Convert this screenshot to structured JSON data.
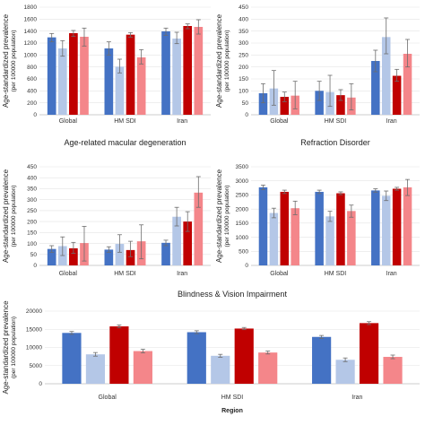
{
  "colors": [
    "#4472c4",
    "#b4c7e7",
    "#c00000",
    "#f4868a"
  ],
  "chart_data": [
    {
      "type": "bar",
      "title": "",
      "ylabel": "Age-standardized prevalence",
      "ylabel2": "(per 100000 population)",
      "xlabel": "",
      "categories": [
        "Global",
        "HM SDI",
        "Iran"
      ],
      "ylim": [
        0,
        1800
      ],
      "yticks": [
        0,
        200,
        400,
        600,
        800,
        1000,
        1200,
        1400,
        1600,
        1800
      ],
      "series": [
        {
          "values": [
            1295,
            1110,
            1395
          ],
          "errors": [
            [
              1220,
              1360
            ],
            [
              1000,
              1220
            ],
            [
              1330,
              1450
            ]
          ]
        },
        {
          "values": [
            1110,
            805,
            1275
          ],
          "errors": [
            [
              980,
              1240
            ],
            [
              700,
              930
            ],
            [
              1190,
              1380
            ]
          ]
        },
        {
          "values": [
            1365,
            1340,
            1485
          ],
          "errors": [
            [
              1310,
              1410
            ],
            [
              1300,
              1375
            ],
            [
              1440,
              1520
            ]
          ]
        },
        {
          "values": [
            1305,
            960,
            1470
          ],
          "errors": [
            [
              1150,
              1450
            ],
            [
              850,
              1090
            ],
            [
              1350,
              1590
            ]
          ]
        }
      ]
    },
    {
      "type": "bar",
      "title": "",
      "ylabel": "Age-standardized prevalence",
      "ylabel2": "(per 100000 population)",
      "xlabel": "",
      "categories": [
        "Global",
        "HM SDI",
        "Iran"
      ],
      "ylim": [
        0,
        450
      ],
      "yticks": [
        0,
        50,
        100,
        150,
        200,
        250,
        300,
        350,
        400,
        450
      ],
      "series": [
        {
          "values": [
            90,
            100,
            225
          ],
          "errors": [
            [
              50,
              130
            ],
            [
              60,
              140
            ],
            [
              180,
              270
            ]
          ]
        },
        {
          "values": [
            110,
            95,
            325
          ],
          "errors": [
            [
              40,
              185
            ],
            [
              35,
              165
            ],
            [
              255,
              405
            ]
          ]
        },
        {
          "values": [
            75,
            82,
            163
          ],
          "errors": [
            [
              55,
              95
            ],
            [
              60,
              105
            ],
            [
              140,
              190
            ]
          ]
        },
        {
          "values": [
            80,
            72,
            255
          ],
          "errors": [
            [
              25,
              140
            ],
            [
              20,
              130
            ],
            [
              200,
              315
            ]
          ]
        }
      ]
    },
    {
      "type": "bar",
      "title": "Age-related macular degeneration",
      "ylabel": "Age-standardized prevalence",
      "ylabel2": "(per 100000 population)",
      "xlabel": "",
      "categories": [
        "Global",
        "HM SDI",
        "Iran"
      ],
      "ylim": [
        0,
        450
      ],
      "yticks": [
        0,
        50,
        100,
        150,
        200,
        250,
        300,
        350,
        400,
        450
      ],
      "series": [
        {
          "values": [
            75,
            72,
            103
          ],
          "errors": [
            [
              60,
              90
            ],
            [
              60,
              85
            ],
            [
              90,
              115
            ]
          ]
        },
        {
          "values": [
            88,
            98,
            222
          ],
          "errors": [
            [
              45,
              130
            ],
            [
              60,
              140
            ],
            [
              180,
              265
            ]
          ]
        },
        {
          "values": [
            78,
            70,
            200
          ],
          "errors": [
            [
              55,
              105
            ],
            [
              40,
              110
            ],
            [
              155,
              245
            ]
          ]
        },
        {
          "values": [
            102,
            110,
            332
          ],
          "errors": [
            [
              20,
              178
            ],
            [
              30,
              185
            ],
            [
              265,
              405
            ]
          ]
        }
      ]
    },
    {
      "type": "bar",
      "title": "Refraction Disorder",
      "ylabel": "Age-standardized prevalence",
      "ylabel2": "(per 100000 population)",
      "xlabel": "",
      "categories": [
        "Global",
        "HM SDI",
        "Iran"
      ],
      "ylim": [
        0,
        3500
      ],
      "yticks": [
        0,
        500,
        1000,
        1500,
        2000,
        2500,
        3000,
        3500
      ],
      "series": [
        {
          "values": [
            2770,
            2610,
            2660
          ],
          "errors": [
            [
              2690,
              2850
            ],
            [
              2550,
              2670
            ],
            [
              2600,
              2720
            ]
          ]
        },
        {
          "values": [
            1860,
            1740,
            2470
          ],
          "errors": [
            [
              1690,
              2030
            ],
            [
              1560,
              1920
            ],
            [
              2300,
              2640
            ]
          ]
        },
        {
          "values": [
            2610,
            2560,
            2720
          ],
          "errors": [
            [
              2550,
              2670
            ],
            [
              2510,
              2610
            ],
            [
              2670,
              2770
            ]
          ]
        },
        {
          "values": [
            2030,
            1930,
            2770
          ],
          "errors": [
            [
              1800,
              2280
            ],
            [
              1710,
              2140
            ],
            [
              2480,
              3050
            ]
          ]
        }
      ]
    },
    {
      "type": "bar",
      "title": "Blindness & Vision Impairment",
      "ylabel": "Age-standardized prevalence",
      "ylabel2": "(per 100000 population)",
      "xlabel": "Region",
      "categories": [
        "Global",
        "HM SDI",
        "Iran"
      ],
      "ylim": [
        0,
        20000
      ],
      "yticks": [
        0,
        5000,
        10000,
        15000,
        20000
      ],
      "series": [
        {
          "values": [
            14000,
            14200,
            12900
          ],
          "errors": [
            [
              13600,
              14400
            ],
            [
              13800,
              14600
            ],
            [
              12500,
              13300
            ]
          ]
        },
        {
          "values": [
            8100,
            7700,
            6600
          ],
          "errors": [
            [
              7600,
              8600
            ],
            [
              7300,
              8100
            ],
            [
              6100,
              7100
            ]
          ]
        },
        {
          "values": [
            15800,
            15200,
            16700
          ],
          "errors": [
            [
              15400,
              16200
            ],
            [
              14900,
              15500
            ],
            [
              16300,
              17100
            ]
          ]
        },
        {
          "values": [
            9000,
            8600,
            7400
          ],
          "errors": [
            [
              8500,
              9500
            ],
            [
              8200,
              9000
            ],
            [
              6900,
              7900
            ]
          ]
        }
      ]
    }
  ]
}
